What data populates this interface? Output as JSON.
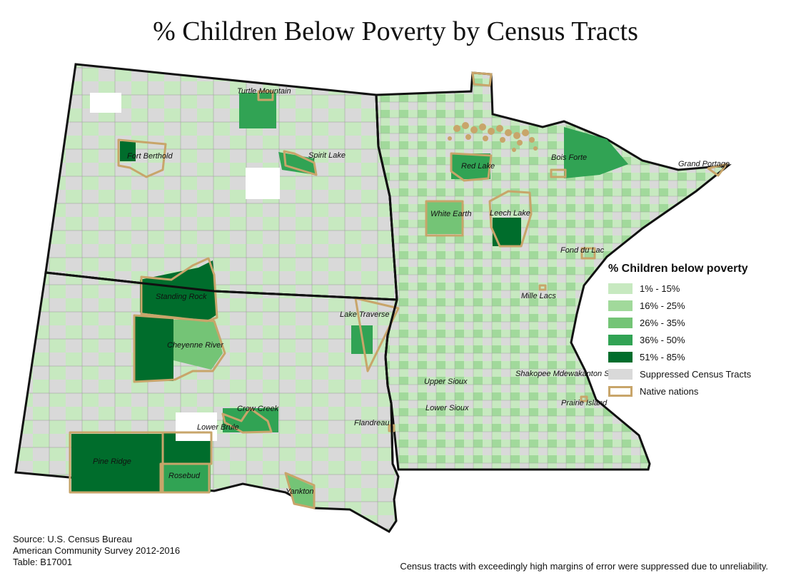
{
  "title": "% Children Below Poverty by Census Tracts",
  "colors": {
    "class_1": "#c7e9c0",
    "class_2": "#a1d99b",
    "class_3": "#74c476",
    "class_4": "#31a354",
    "class_5": "#006d2c",
    "suppressed": "#d9d9d9",
    "native_outline": "#c8a56a",
    "border": "#111111"
  },
  "native_nations": {
    "turtle_mountain": "Turtle Mountain",
    "fort_berthold": "Fort Berthold",
    "spirit_lake": "Spirit Lake",
    "standing_rock": "Standing Rock",
    "cheyenne_river": "Cheyenne River",
    "lake_traverse": "Lake Traverse",
    "crow_creek": "Crow Creek",
    "lower_brule": "Lower Brule",
    "pine_ridge": "Pine Ridge",
    "rosebud": "Rosebud",
    "yankton": "Yankton",
    "flandreau": "Flandreau",
    "red_lake": "Red Lake",
    "bois_forte": "Bois Forte",
    "grand_portage": "Grand Portage",
    "white_earth": "White Earth",
    "leech_lake": "Leech Lake",
    "fond_du_lac": "Fond du Lac",
    "mille_lacs": "Mille Lacs",
    "upper_sioux": "Upper Sioux",
    "lower_sioux": "Lower Sioux",
    "shakopee": "Shakopee Mdewakanton Sioux",
    "prairie_island": "Prairie Island"
  },
  "legend": {
    "title": "% Children below poverty",
    "items": [
      {
        "label": "1% - 15%"
      },
      {
        "label": "16% - 25%"
      },
      {
        "label": "26% - 35%"
      },
      {
        "label": "36% - 50%"
      },
      {
        "label": "51% - 85%"
      },
      {
        "label": "Suppressed Census Tracts"
      },
      {
        "label": "Native nations"
      }
    ]
  },
  "source": {
    "line1": "Source: U.S. Census Bureau",
    "line2": "American Community Survey 2012-2016",
    "line3": "Table: B17001"
  },
  "footnote": "Census tracts with exceedingly high margins of error were suppressed due to unreliability."
}
